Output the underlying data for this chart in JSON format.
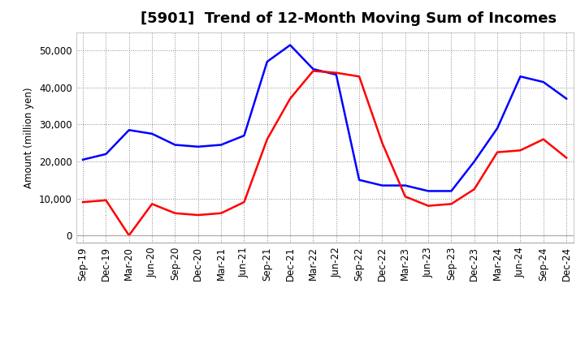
{
  "title": "[5901]  Trend of 12-Month Moving Sum of Incomes",
  "ylabel": "Amount (million yen)",
  "x_labels": [
    "Sep-19",
    "Dec-19",
    "Mar-20",
    "Jun-20",
    "Sep-20",
    "Dec-20",
    "Mar-21",
    "Jun-21",
    "Sep-21",
    "Dec-21",
    "Mar-22",
    "Jun-22",
    "Sep-22",
    "Dec-22",
    "Mar-23",
    "Jun-23",
    "Sep-23",
    "Dec-23",
    "Mar-24",
    "Jun-24",
    "Sep-24",
    "Dec-24"
  ],
  "ordinary_income": [
    20500,
    22000,
    28500,
    27500,
    24500,
    24000,
    24500,
    27000,
    47000,
    51500,
    45000,
    43500,
    15000,
    13500,
    13500,
    12000,
    12000,
    20000,
    29000,
    43000,
    41500,
    37000
  ],
  "net_income": [
    9000,
    9500,
    0,
    8500,
    6000,
    5500,
    6000,
    9000,
    26000,
    37000,
    44500,
    44000,
    43000,
    25000,
    10500,
    8000,
    8500,
    12500,
    22500,
    23000,
    26000,
    21000
  ],
  "ordinary_color": "#0000ff",
  "net_color": "#ff0000",
  "ylim": [
    -2000,
    55000
  ],
  "yticks": [
    0,
    10000,
    20000,
    30000,
    40000,
    50000
  ],
  "background_color": "#ffffff",
  "grid_color": "#888888",
  "title_fontsize": 13,
  "legend_fontsize": 10,
  "tick_fontsize": 8.5
}
